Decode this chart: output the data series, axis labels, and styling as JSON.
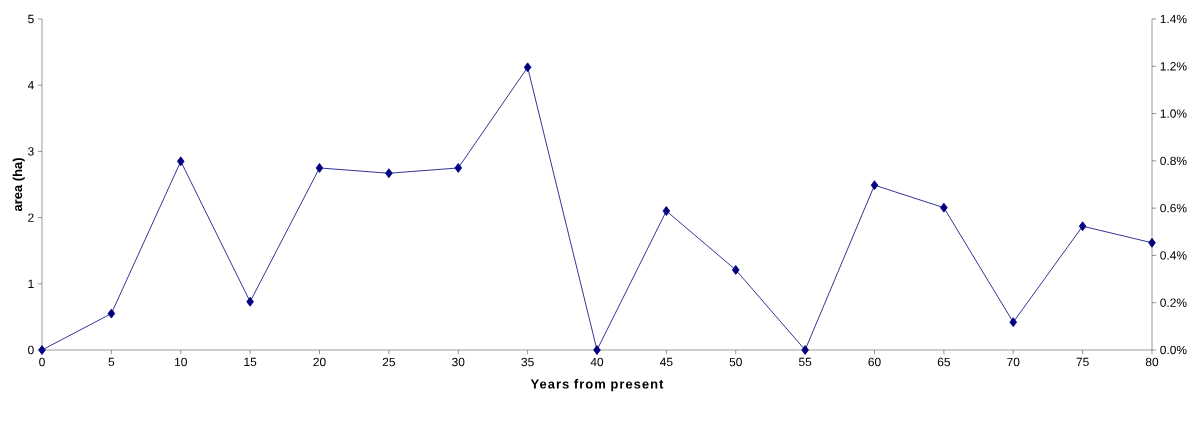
{
  "chart_data": {
    "type": "line",
    "xlabel": "Years from present",
    "ylabel": "area (ha)",
    "x": [
      0,
      5,
      10,
      15,
      20,
      25,
      30,
      35,
      40,
      45,
      50,
      55,
      60,
      65,
      70,
      75,
      80
    ],
    "values": [
      0,
      0.55,
      2.85,
      0.73,
      2.75,
      2.67,
      2.75,
      4.27,
      0,
      2.1,
      1.21,
      0,
      2.49,
      2.15,
      0.42,
      1.87,
      1.62
    ],
    "color": "#000080",
    "marker": "diamond",
    "line_style": "solid",
    "xlim": [
      0,
      80
    ],
    "xticks": [
      0,
      5,
      10,
      15,
      20,
      25,
      30,
      35,
      40,
      45,
      50,
      55,
      60,
      65,
      70,
      75,
      80
    ],
    "ylim": [
      0,
      5
    ],
    "yticks": [
      0,
      1,
      2,
      3,
      4,
      5
    ],
    "y2lim": [
      0,
      1.4
    ],
    "y2ticks": [
      {
        "value": 0,
        "label": "0.0%"
      },
      {
        "value": 0.2,
        "label": "0.2%"
      },
      {
        "value": 0.4,
        "label": "0.4%"
      },
      {
        "value": 0.6,
        "label": "0.6%"
      },
      {
        "value": 0.8,
        "label": "0.8%"
      },
      {
        "value": 1.0,
        "label": "1.0%"
      },
      {
        "value": 1.2,
        "label": "1.2%"
      },
      {
        "value": 1.4,
        "label": "1.4%"
      }
    ]
  }
}
